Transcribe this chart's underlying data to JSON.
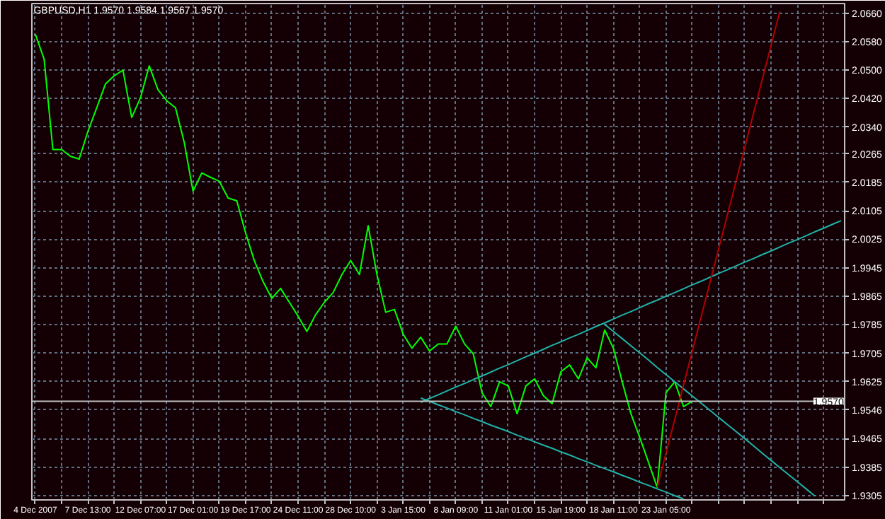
{
  "chart_data": {
    "type": "line",
    "title": "GBPUSD,H1  1.9570 1.9584 1.9567 1.9570",
    "categories": [
      "4 Dec 2007",
      null,
      null,
      null,
      null,
      null,
      "7 Dec 13:00",
      null,
      null,
      null,
      null,
      null,
      "12 Dec 07:00",
      null,
      null,
      null,
      null,
      null,
      "17 Dec 01:00",
      null,
      null,
      null,
      null,
      null,
      "19 Dec 17:00",
      null,
      null,
      null,
      null,
      null,
      "24 Dec 11:00",
      null,
      null,
      null,
      null,
      null,
      "28 Dec 10:00",
      null,
      null,
      null,
      null,
      null,
      "3 Jan 15:00",
      null,
      null,
      null,
      null,
      null,
      "8 Jan 09:00",
      null,
      null,
      null,
      null,
      null,
      "11 Jan 01:00",
      null,
      null,
      null,
      null,
      null,
      "15 Jan 19:00",
      null,
      null,
      null,
      null,
      null,
      "18 Jan 11:00",
      null,
      null,
      null,
      null,
      null,
      "23 Jan 05:00",
      null,
      null,
      null,
      null,
      null,
      null,
      null,
      null,
      null,
      null,
      null,
      null,
      null,
      null,
      null,
      null,
      null,
      null,
      null,
      null
    ],
    "ylim": [
      1.9293,
      2.0687
    ],
    "yticks": [
      {
        "value": 2.066,
        "label": "2.0660"
      },
      {
        "value": 2.058,
        "label": "2.0580"
      },
      {
        "value": 2.05,
        "label": "2.0500"
      },
      {
        "value": 2.042,
        "label": "2.0420"
      },
      {
        "value": 2.034,
        "label": "2.0340"
      },
      {
        "value": 2.0265,
        "label": "2.0265"
      },
      {
        "value": 2.0185,
        "label": "2.0185"
      },
      {
        "value": 2.0105,
        "label": "2.0105"
      },
      {
        "value": 2.0025,
        "label": "2.0025"
      },
      {
        "value": 1.9945,
        "label": "1.9945"
      },
      {
        "value": 1.9865,
        "label": "1.9865"
      },
      {
        "value": 1.9785,
        "label": "1.9785"
      },
      {
        "value": 1.9705,
        "label": "1.9705"
      },
      {
        "value": 1.9625,
        "label": "1.9625"
      },
      {
        "value": 1.9546,
        "label": "1.9546"
      },
      {
        "value": 1.9465,
        "label": "1.9465"
      },
      {
        "value": 1.9385,
        "label": "1.9385"
      },
      {
        "value": 1.9305,
        "label": "1.9305"
      }
    ],
    "grid": true,
    "ref_lines": [
      {
        "axis": "y",
        "value": 1.957,
        "label": "1.9570",
        "color": "#c0c0c0"
      }
    ],
    "series": [
      {
        "color": "#00ff00",
        "values": [
          2.0601,
          2.0531,
          2.0277,
          2.0277,
          2.0258,
          2.025,
          2.0328,
          2.0394,
          2.0461,
          2.0484,
          2.05,
          2.0367,
          2.0422,
          2.0512,
          2.0445,
          2.0414,
          2.0394,
          2.0297,
          2.016,
          2.0211,
          2.0199,
          2.0188,
          2.0141,
          2.0133,
          2.0043,
          1.9965,
          1.9906,
          1.9859,
          1.9887,
          1.9848,
          1.9809,
          1.9766,
          1.9813,
          1.9848,
          1.9875,
          1.9926,
          1.9965,
          1.9926,
          2.0063,
          1.9926,
          1.982,
          1.9828,
          1.9758,
          1.9719,
          1.975,
          1.9711,
          1.9731,
          1.9731,
          1.9781,
          1.9731,
          1.9703,
          1.9594,
          1.9555,
          1.9625,
          1.9613,
          1.9535,
          1.9613,
          1.9633,
          1.9586,
          1.9563,
          1.9653,
          1.9672,
          1.9633,
          1.9692,
          1.9664,
          1.977,
          1.9719,
          1.9625,
          1.9535,
          1.9469,
          1.9399,
          1.9328,
          1.9594,
          1.9625,
          1.9555,
          1.957,
          null,
          null,
          null,
          null,
          null,
          null,
          null,
          null,
          null,
          null,
          null,
          null,
          null,
          null,
          null,
          null,
          null
        ]
      },
      {
        "color": "#20b2aa",
        "values": [
          null,
          null,
          null,
          null,
          null,
          null,
          null,
          null,
          null,
          null,
          null,
          null,
          null,
          null,
          null,
          null,
          null,
          null,
          null,
          null,
          null,
          null,
          null,
          null,
          null,
          null,
          null,
          null,
          null,
          null,
          null,
          null,
          null,
          null,
          null,
          null,
          null,
          null,
          null,
          null,
          null,
          null,
          null,
          null,
          1.9567,
          1.9578,
          1.9588,
          1.9599,
          1.961,
          1.962,
          1.9631,
          1.9641,
          1.9652,
          1.9663,
          1.9673,
          1.9684,
          1.9695,
          1.9705,
          1.9716,
          1.9727,
          1.9737,
          1.9748,
          1.9758,
          1.9769,
          1.978,
          1.979,
          1.9801,
          1.9812,
          1.9822,
          1.9833,
          1.9844,
          1.9854,
          1.9865,
          1.9875,
          1.9886,
          1.9897,
          1.9907,
          1.9918,
          1.9929,
          1.9939,
          1.995,
          1.9961,
          1.9971,
          1.9982,
          1.9992,
          2.0003,
          2.0014,
          2.0024,
          2.0035,
          2.0046,
          2.0056,
          2.0067,
          2.0077
        ]
      },
      {
        "color": "#20b2aa",
        "values": [
          null,
          null,
          null,
          null,
          null,
          null,
          null,
          null,
          null,
          null,
          null,
          null,
          null,
          null,
          null,
          null,
          null,
          null,
          null,
          null,
          null,
          null,
          null,
          null,
          null,
          null,
          null,
          null,
          null,
          null,
          null,
          null,
          null,
          null,
          null,
          null,
          null,
          null,
          null,
          null,
          null,
          null,
          null,
          null,
          1.9579,
          1.957,
          1.956,
          1.9551,
          1.9541,
          1.9532,
          1.9522,
          1.9513,
          1.9503,
          1.9494,
          1.9485,
          1.9475,
          1.9466,
          1.9456,
          1.9447,
          1.9438,
          1.9428,
          1.9419,
          1.9409,
          1.94,
          1.939,
          1.9381,
          1.9372,
          1.9362,
          1.9353,
          1.9343,
          1.9334,
          1.9324,
          1.9315,
          1.9305,
          1.9296,
          null,
          null,
          null,
          null,
          null,
          null,
          null,
          null,
          null,
          null,
          null,
          null,
          null,
          null,
          null,
          null,
          null,
          null
        ]
      },
      {
        "color": "#20b2aa",
        "values": [
          null,
          null,
          null,
          null,
          null,
          null,
          null,
          null,
          null,
          null,
          null,
          null,
          null,
          null,
          null,
          null,
          null,
          null,
          null,
          null,
          null,
          null,
          null,
          null,
          null,
          null,
          null,
          null,
          null,
          null,
          null,
          null,
          null,
          null,
          null,
          null,
          null,
          null,
          null,
          null,
          null,
          null,
          null,
          null,
          null,
          null,
          null,
          null,
          null,
          null,
          null,
          null,
          null,
          null,
          null,
          null,
          null,
          null,
          null,
          null,
          null,
          null,
          null,
          null,
          null,
          1.9786,
          1.9766,
          1.9746,
          1.9726,
          1.9706,
          1.9686,
          1.9665,
          1.9645,
          1.9625,
          1.9605,
          1.9585,
          1.9565,
          1.9545,
          1.9525,
          1.9505,
          1.9485,
          1.9465,
          1.9445,
          1.9424,
          1.9404,
          1.9384,
          1.9364,
          1.9344,
          1.9324,
          1.9304,
          null,
          null,
          null
        ]
      },
      {
        "color": "#b00000",
        "values": [
          null,
          null,
          null,
          null,
          null,
          null,
          null,
          null,
          null,
          null,
          null,
          null,
          null,
          null,
          null,
          null,
          null,
          null,
          null,
          null,
          null,
          null,
          null,
          null,
          null,
          null,
          null,
          null,
          null,
          null,
          null,
          null,
          null,
          null,
          null,
          null,
          null,
          null,
          null,
          null,
          null,
          null,
          null,
          null,
          null,
          null,
          null,
          null,
          null,
          null,
          null,
          null,
          null,
          null,
          null,
          null,
          null,
          null,
          null,
          null,
          null,
          null,
          null,
          null,
          null,
          null,
          null,
          null,
          null,
          null,
          null,
          1.9328,
          1.9424,
          1.9519,
          1.9615,
          1.971,
          1.9806,
          1.9901,
          1.9997,
          2.0092,
          2.0188,
          2.0283,
          2.0379,
          2.0474,
          2.057,
          2.0665,
          null,
          null,
          null,
          null,
          null,
          null,
          null
        ]
      }
    ]
  }
}
